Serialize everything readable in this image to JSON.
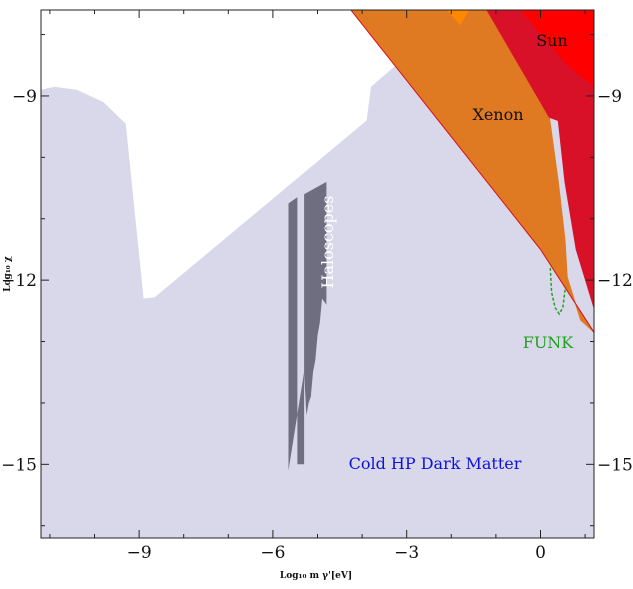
{
  "chart_data": {
    "type": "area",
    "xlabel": "Log₁₀ m γ'[eV]",
    "ylabel": "Log₁₀ χ",
    "xlim": [
      -11.2,
      1.2
    ],
    "ylim": [
      -16.2,
      -7.6
    ],
    "xticks": [
      {
        "value": -9,
        "label": "−9"
      },
      {
        "value": -6,
        "label": "−6"
      },
      {
        "value": -3,
        "label": "−3"
      },
      {
        "value": 0,
        "label": "0"
      }
    ],
    "yticks": [
      {
        "value": -9,
        "label": "−9"
      },
      {
        "value": -12,
        "label": "−12"
      },
      {
        "value": -15,
        "label": "−15"
      }
    ],
    "grid": false,
    "regions": [
      {
        "name": "Cold HP Dark Matter",
        "color": "#d8d8ea",
        "points": [
          [
            -11.2,
            -16.2
          ],
          [
            -11.2,
            -8.9
          ],
          [
            -10.9,
            -8.85
          ],
          [
            -10.4,
            -8.9
          ],
          [
            -9.8,
            -9.1
          ],
          [
            -9.3,
            -9.45
          ],
          [
            -8.9,
            -12.3
          ],
          [
            -8.65,
            -12.28
          ],
          [
            -3.9,
            -9.4
          ],
          [
            -3.8,
            -8.85
          ],
          [
            -1.8,
            -7.6
          ],
          [
            1.2,
            -7.6
          ],
          [
            1.2,
            -16.2
          ]
        ]
      },
      {
        "name": "Haloscopes",
        "color": "#6e6e80",
        "points": [
          [
            -5.65,
            -15.1
          ],
          [
            -5.65,
            -10.75
          ],
          [
            -5.45,
            -10.65
          ],
          [
            -5.45,
            -15.0
          ],
          [
            -5.3,
            -15.0
          ],
          [
            -5.3,
            -10.6
          ],
          [
            -4.8,
            -10.4
          ],
          [
            -4.8,
            -12.4
          ],
          [
            -4.9,
            -12.3
          ],
          [
            -4.95,
            -12.7
          ],
          [
            -5.0,
            -12.9
          ],
          [
            -5.05,
            -13.3
          ],
          [
            -5.1,
            -13.5
          ],
          [
            -5.15,
            -13.9
          ],
          [
            -5.2,
            -14.0
          ],
          [
            -5.25,
            -14.2
          ],
          [
            -5.3,
            -13.5
          ]
        ]
      },
      {
        "name": "Xenon",
        "color": "#e07a22",
        "points": [
          [
            -1.6,
            -7.6
          ],
          [
            -1.8,
            -7.85
          ],
          [
            -2.8,
            -7.6
          ],
          [
            -1.6,
            -7.6
          ],
          [
            -1.2,
            -7.6
          ],
          [
            0.2,
            -9.35
          ],
          [
            0.4,
            -10.4
          ],
          [
            0.55,
            -11.35
          ],
          [
            0.6,
            -11.95
          ],
          [
            0.9,
            -12.65
          ],
          [
            1.2,
            -12.85
          ],
          [
            1.2,
            -12.85
          ],
          [
            0.0,
            -11.5
          ],
          [
            -4.25,
            -7.6
          ]
        ]
      },
      {
        "name": "Xenon-orange-top",
        "color": "#ff8800",
        "points": [
          [
            -4.25,
            -7.6
          ],
          [
            -3.1,
            -7.6
          ],
          [
            -2.1,
            -7.6
          ],
          [
            -1.8,
            -7.85
          ],
          [
            -1.6,
            -7.6
          ]
        ]
      },
      {
        "name": "Sun",
        "color": "#d81128",
        "points": [
          [
            -1.2,
            -7.6
          ],
          [
            1.2,
            -7.6
          ],
          [
            1.2,
            -12.45
          ],
          [
            0.8,
            -11.5
          ],
          [
            0.55,
            -10.4
          ],
          [
            0.4,
            -9.4
          ],
          [
            0.2,
            -9.35
          ],
          [
            -1.2,
            -7.6
          ]
        ]
      },
      {
        "name": "Sun-bright",
        "color": "#ff0000",
        "points": [
          [
            -0.45,
            -7.6
          ],
          [
            1.2,
            -7.6
          ],
          [
            1.2,
            -8.85
          ],
          [
            0.6,
            -8.5
          ],
          [
            -0.45,
            -7.6
          ]
        ]
      }
    ],
    "funk_curve": {
      "name": "FUNK",
      "color": "#22a022",
      "points": [
        [
          0.22,
          -11.8
        ],
        [
          0.25,
          -12.2
        ],
        [
          0.33,
          -12.45
        ],
        [
          0.42,
          -12.55
        ],
        [
          0.5,
          -12.45
        ],
        [
          0.56,
          -12.1
        ]
      ]
    },
    "labels": {
      "sun": "Sun",
      "xenon": "Xenon",
      "haloscopes": "Haloscopes",
      "funk": "FUNK",
      "cold": "Cold HP Dark Matter"
    },
    "label_colors": {
      "sun": "#111111",
      "xenon": "#111111",
      "haloscopes": "#ffffff",
      "funk": "#22a022",
      "cold": "#1010dd"
    }
  }
}
